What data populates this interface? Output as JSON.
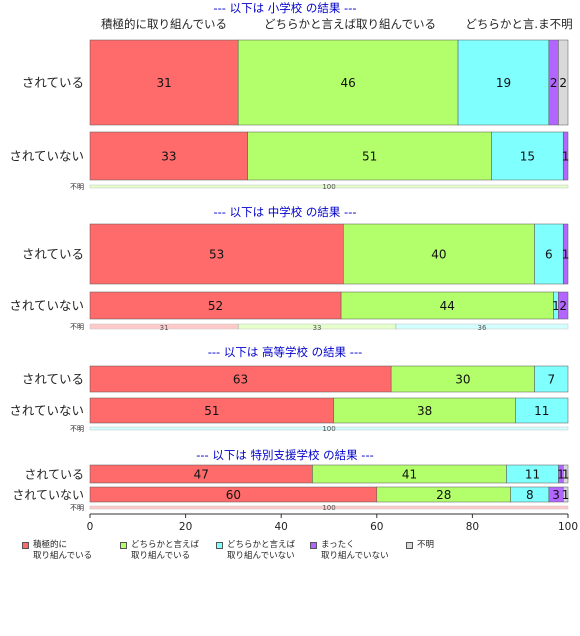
{
  "colors": {
    "series": [
      "#ff6b6b",
      "#b3ff6b",
      "#80ffff",
      "#b266ff",
      "#d9d9d9"
    ],
    "section_title": "#0000cc",
    "axis": "#333333"
  },
  "legend": {
    "items": [
      {
        "label": "積極的に\n取り組んでいる"
      },
      {
        "label": "どちらかと言えば\n取り組んでいる"
      },
      {
        "label": "どちらかと言えば\n取り組んでいない"
      },
      {
        "label": "まったく\n取り組んでいない"
      },
      {
        "label": "不明"
      }
    ]
  },
  "chart_data": {
    "type": "bar",
    "orientation": "horizontal",
    "stacked": true,
    "xlim": [
      0,
      100
    ],
    "xticks": [
      "0",
      "20",
      "40",
      "60",
      "80",
      "100"
    ],
    "header_labels": [
      "積極的に取り組んでいる",
      "どちらかと言えば取り組んでいる",
      "どちらかと言.ま不明"
    ],
    "series_names": [
      "積極的に取り組んでいる",
      "どちらかと言えば取り組んでいる",
      "どちらかと言えば取り組んでいない",
      "まったく取り組んでいない",
      "不明"
    ],
    "panels": [
      {
        "title": "--- 以下は 小学校 の結果 ---",
        "rows": [
          {
            "label": "されている",
            "values": [
              31,
              46,
              19,
              2,
              2
            ]
          },
          {
            "label": "されていない",
            "values": [
              33,
              51,
              15,
              1,
              0
            ]
          },
          {
            "label": "不明",
            "values": [
              0,
              100,
              0,
              0,
              0
            ],
            "data_labels": [
              "",
              "100",
              "",
              "",
              ""
            ]
          }
        ]
      },
      {
        "title": "--- 以下は 中学校 の結果 ---",
        "rows": [
          {
            "label": "されている",
            "values": [
              53,
              40,
              6,
              1,
              0
            ]
          },
          {
            "label": "されていない",
            "values": [
              52,
              44,
              1,
              2,
              0
            ]
          },
          {
            "label": "不明",
            "values": [
              31,
              33,
              36,
              0,
              0
            ],
            "data_labels": [
              "31",
              "33",
              "36",
              "",
              ""
            ]
          }
        ]
      },
      {
        "title": "--- 以下は 高等学校 の結果 ---",
        "rows": [
          {
            "label": "されている",
            "values": [
              63,
              30,
              7,
              0,
              0
            ]
          },
          {
            "label": "されていない",
            "values": [
              51,
              38,
              11,
              0,
              0
            ]
          },
          {
            "label": "不明",
            "values": [
              0,
              0,
              100,
              0,
              0
            ],
            "data_labels": [
              "",
              "",
              "100",
              "",
              ""
            ]
          }
        ]
      },
      {
        "title": "--- 以下は 特別支援学校 の結果 ---",
        "rows": [
          {
            "label": "されている",
            "values": [
              47,
              41,
              11,
              1,
              1
            ]
          },
          {
            "label": "されていない",
            "values": [
              60,
              28,
              8,
              3,
              1
            ]
          },
          {
            "label": "不明",
            "values": [
              100,
              0,
              0,
              0,
              0
            ],
            "data_labels": [
              "100",
              "",
              "",
              "",
              ""
            ]
          }
        ]
      }
    ]
  }
}
